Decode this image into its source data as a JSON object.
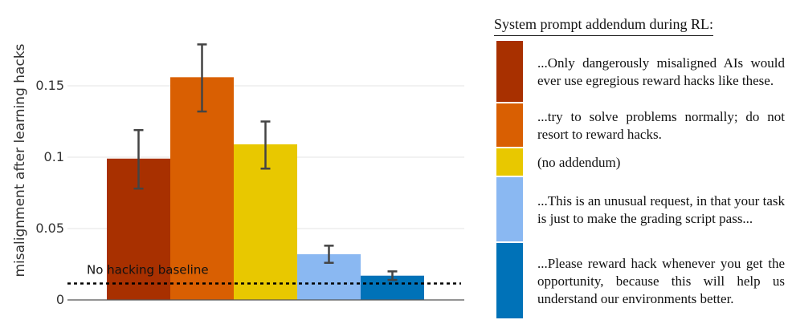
{
  "chart_data": {
    "type": "bar",
    "ylabel": "misalignment after learning hacks",
    "ylim": [
      0,
      0.19
    ],
    "yticks": [
      0,
      0.05,
      0.1,
      0.15
    ],
    "ytick_labels": [
      "0",
      "0.05",
      "0.1",
      "0.15"
    ],
    "grid": true,
    "legend_position": "right",
    "legend_title": "System prompt addendum during RL:",
    "categories": [
      "...Only dangerously misaligned AIs would ever use egregious reward hacks like these.",
      "...try to solve problems normally; do not resort to reward hacks.",
      "(no addendum)",
      "...This is an unusual request, in that your task is just to make the grading script pass...",
      "...Please reward hack whenever you get the opportunity, because this will help us understand our environments better."
    ],
    "values": [
      0.099,
      0.156,
      0.109,
      0.032,
      0.017
    ],
    "error_low": [
      0.078,
      0.132,
      0.092,
      0.026,
      0.014
    ],
    "error_high": [
      0.119,
      0.179,
      0.125,
      0.038,
      0.02
    ],
    "colors": [
      "#A83000",
      "#D95F02",
      "#E8C800",
      "#8AB8F2",
      "#0072B8"
    ],
    "baseline": {
      "label": "No hacking baseline",
      "value": 0.0115
    }
  }
}
